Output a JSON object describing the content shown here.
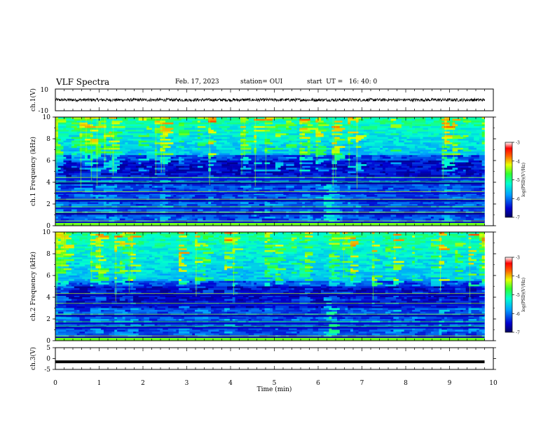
{
  "header": {
    "title": "VLF Spectra",
    "date": "Feb. 17, 2023",
    "station": "station= OUI",
    "start": "start  UT =   16: 40: 0"
  },
  "chart_data": [
    {
      "type": "line",
      "panel": "ch1-waveform",
      "ylabel": "ch.1(V)",
      "ylim": [
        -10,
        10
      ],
      "y_ticks": [
        "10",
        "-10"
      ],
      "xlim": [
        0,
        10
      ],
      "series": [
        {
          "values_desc": "noise around 0 V, amplitude ~±1.5 V",
          "mean": 0,
          "amplitude": 1.4
        }
      ],
      "color": "#000000"
    },
    {
      "type": "heatmap",
      "panel": "ch1-spectrogram",
      "ylabel": "ch.1 Frequency (kHz)",
      "ylim": [
        0,
        10
      ],
      "y_ticks": [
        "0",
        "2",
        "4",
        "6",
        "8",
        "10"
      ],
      "xlim": [
        0,
        9.8
      ],
      "colorbar": {
        "label": "log(PSD)(V²/Hz)",
        "range": [
          -7,
          -3
        ],
        "ticks": [
          "-3",
          "-4",
          "-5",
          "-6",
          "-7"
        ]
      },
      "features": {
        "noisy_band_kHz": [
          6.5,
          10
        ],
        "quiet_band_kHz": [
          4.5,
          6
        ],
        "strong_lines_kHz": [
          0.3,
          1.1,
          1.6,
          2.3,
          3.0,
          3.9,
          4.3
        ],
        "event_time_min": 6.2
      }
    },
    {
      "type": "heatmap",
      "panel": "ch2-spectrogram",
      "ylabel": "ch.2 Frequency (kHz)",
      "ylim": [
        0,
        10
      ],
      "y_ticks": [
        "0",
        "2",
        "4",
        "6",
        "8",
        "10"
      ],
      "xlim": [
        0,
        9.8
      ],
      "colorbar": {
        "label": "log(PSD)(V²/Hz)",
        "range": [
          -7,
          -3
        ],
        "ticks": [
          "-3",
          "-4",
          "-5",
          "-6",
          "-7"
        ]
      },
      "features": {
        "noisy_band_kHz": [
          5.5,
          10
        ],
        "quiet_band_kHz": [
          3,
          5
        ],
        "strong_lines_kHz": [
          0.3,
          1.2,
          1.6,
          2.3,
          3.3,
          4.2
        ],
        "event_time_min": 6.2
      }
    },
    {
      "type": "line",
      "panel": "ch3-waveform",
      "ylabel": "ch.3(V)",
      "ylim": [
        -5,
        5
      ],
      "y_ticks": [
        "5",
        "0",
        "-5"
      ],
      "xlim": [
        0,
        10
      ],
      "series": [
        {
          "values_desc": "flat signal at ~ -1.5 V",
          "mean": -1.5,
          "amplitude": 0.2
        }
      ],
      "color": "#000000"
    }
  ],
  "x_axis": {
    "label": "Time (min)",
    "ticks": [
      "0",
      "1",
      "2",
      "3",
      "4",
      "5",
      "6",
      "7",
      "8",
      "9",
      "10"
    ]
  }
}
